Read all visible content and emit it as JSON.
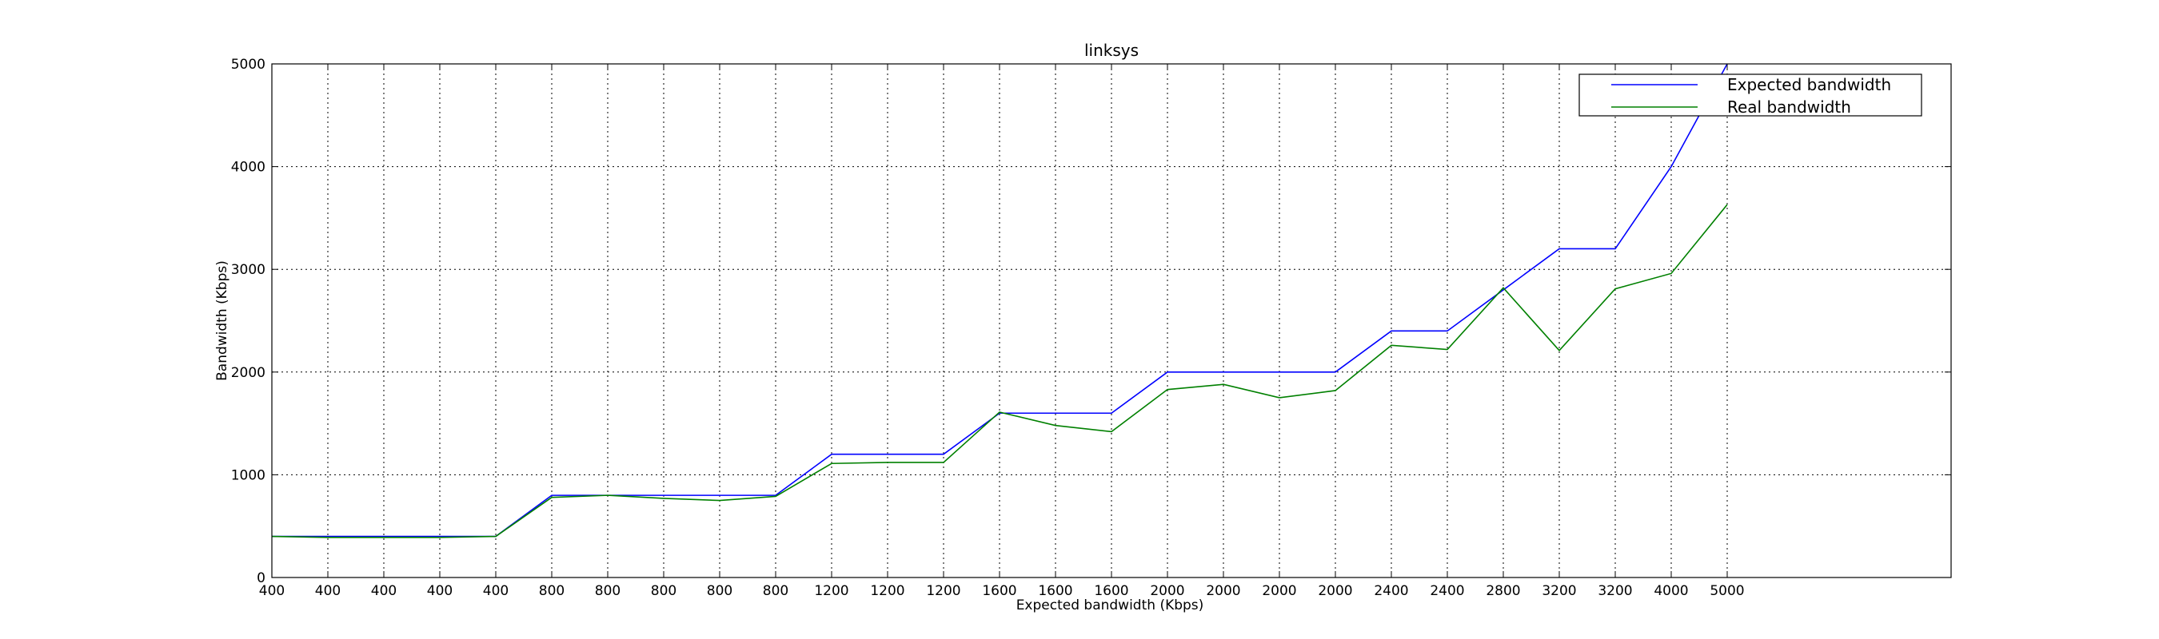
{
  "chart_data": {
    "type": "line",
    "title": "linksys",
    "xlabel": "Expected bandwidth (Kbps)",
    "ylabel": "Bandwidth (Kbps)",
    "ylim": [
      0,
      5000
    ],
    "yticks": [
      0,
      1000,
      2000,
      3000,
      4000,
      5000
    ],
    "grid": true,
    "legend_position": "top-right",
    "categories": [
      "400",
      "400",
      "400",
      "400",
      "400",
      "800",
      "800",
      "800",
      "800",
      "800",
      "1200",
      "1200",
      "1200",
      "1600",
      "1600",
      "1600",
      "2000",
      "2000",
      "2000",
      "2000",
      "2400",
      "2400",
      "2800",
      "3200",
      "3200",
      "4000",
      "5000"
    ],
    "series": [
      {
        "name": "Expected bandwidth",
        "color": "#0000ff",
        "values": [
          400,
          400,
          400,
          400,
          400,
          800,
          800,
          800,
          800,
          800,
          1200,
          1200,
          1200,
          1600,
          1600,
          1600,
          2000,
          2000,
          2000,
          2000,
          2400,
          2400,
          2800,
          3200,
          3200,
          4000,
          5000
        ]
      },
      {
        "name": "Real bandwidth",
        "color": "#008000",
        "values": [
          400,
          390,
          390,
          390,
          400,
          780,
          800,
          770,
          750,
          790,
          1110,
          1120,
          1120,
          1610,
          1480,
          1420,
          1830,
          1880,
          1750,
          1820,
          2260,
          2220,
          2820,
          2210,
          2810,
          2960,
          3630
        ]
      }
    ]
  }
}
